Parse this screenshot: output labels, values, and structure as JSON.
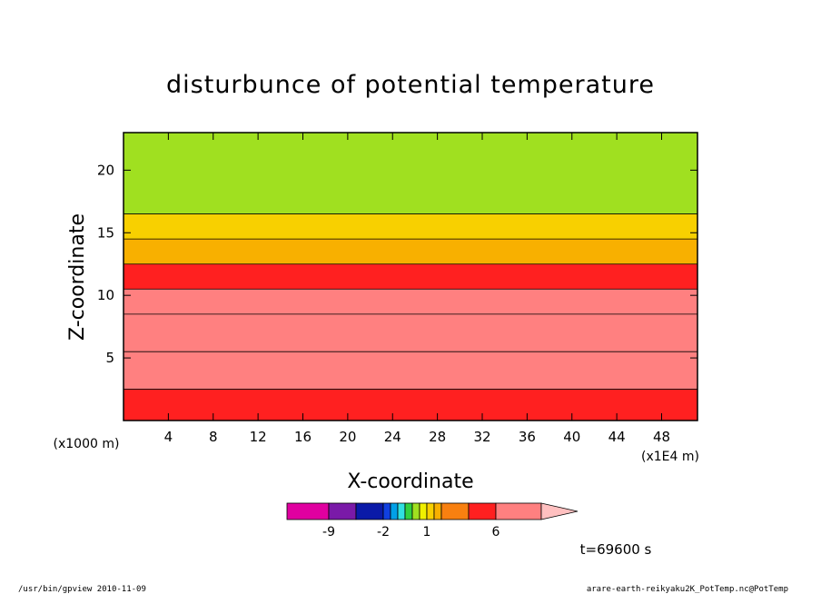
{
  "chart_data": {
    "type": "heatmap",
    "title": "disturbunce of potential temperature",
    "xlabel": "X-coordinate",
    "ylabel": "Z-coordinate",
    "x_scale_label": "(x1E4 m)",
    "y_scale_label": "(x1000 m)",
    "xlim": [
      0,
      51.2
    ],
    "ylim": [
      0,
      23
    ],
    "x_ticks": [
      "4",
      "8",
      "12",
      "16",
      "20",
      "24",
      "28",
      "32",
      "36",
      "40",
      "44",
      "48"
    ],
    "y_ticks": [
      "5",
      "10",
      "15",
      "20"
    ],
    "colorbar": {
      "levels": [
        -12,
        -9,
        -6,
        -2,
        -1.5,
        -1,
        -0.5,
        0,
        0.5,
        1,
        1.5,
        2,
        3,
        6,
        9
      ],
      "colors": [
        "#e000a0",
        "#7a1aa8",
        "#0a1aa8",
        "#1040e0",
        "#00a0e8",
        "#30e0e0",
        "#30d040",
        "#a0e020",
        "#f0f000",
        "#f8d000",
        "#f8b000",
        "#f88010",
        "#ff2020",
        "#ff8080",
        "#ffc0c0"
      ],
      "tick_labels": [
        "-9",
        "-2",
        "1",
        "6"
      ]
    },
    "time_label": "t=69600 s",
    "bands": [
      {
        "z": [
          0,
          2.5
        ],
        "value": 2.2
      },
      {
        "z": [
          2.5,
          5.5
        ],
        "value": 3.3
      },
      {
        "z": [
          5.5,
          8.5
        ],
        "value": 5.0
      },
      {
        "z": [
          8.5,
          10.5
        ],
        "value": 3.3
      },
      {
        "z": [
          10.5,
          12.5
        ],
        "value": 2.2
      },
      {
        "z": [
          12.5,
          14.5
        ],
        "value": 1.2
      },
      {
        "z": [
          14.5,
          16.5
        ],
        "value": 0.7
      },
      {
        "z": [
          16.5,
          23
        ],
        "value": -0.3
      }
    ]
  },
  "footer": {
    "left": "/usr/bin/gpview  2010-11-09",
    "right": "arare-earth-reikyaku2K_PotTemp.nc@PotTemp"
  }
}
